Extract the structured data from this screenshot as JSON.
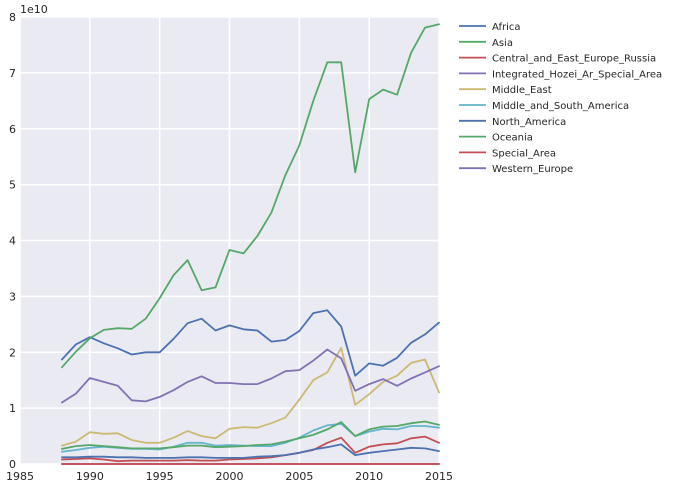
{
  "chart_data": {
    "type": "line",
    "title": "",
    "xlabel": "",
    "ylabel": "",
    "offset_label": "1e10",
    "xlim": [
      1985,
      2015
    ],
    "ylim": [
      0,
      8
    ],
    "xticks": [
      1985,
      1990,
      1995,
      2000,
      2005,
      2010,
      2015
    ],
    "yticks": [
      0,
      1,
      2,
      3,
      4,
      5,
      6,
      7,
      8
    ],
    "grid": true,
    "legend_position": "outside-top-right",
    "x": [
      1988,
      1989,
      1990,
      1991,
      1992,
      1993,
      1994,
      1995,
      1996,
      1997,
      1998,
      1999,
      2000,
      2001,
      2002,
      2003,
      2004,
      2005,
      2006,
      2007,
      2008,
      2009,
      2010,
      2011,
      2012,
      2013,
      2014,
      2015
    ],
    "series": [
      {
        "name": "Africa",
        "color": "#4c72b0",
        "values": [
          1.87,
          2.14,
          2.27,
          2.16,
          2.07,
          1.96,
          2.0,
          2.0,
          2.24,
          2.52,
          2.6,
          2.39,
          2.48,
          2.41,
          2.39,
          2.19,
          2.22,
          2.38,
          2.7,
          2.75,
          2.46,
          1.58,
          1.8,
          1.76,
          1.9,
          2.17,
          2.32,
          2.53
        ]
      },
      {
        "name": "Asia",
        "color": "#55a868",
        "values": [
          1.73,
          2.01,
          2.25,
          2.4,
          2.43,
          2.42,
          2.6,
          2.97,
          3.38,
          3.65,
          3.11,
          3.16,
          3.83,
          3.77,
          4.08,
          4.5,
          5.17,
          5.7,
          6.5,
          7.19,
          7.19,
          5.22,
          6.53,
          6.7,
          6.61,
          7.36,
          7.81,
          7.87
        ]
      },
      {
        "name": "Central_and_East_Europe_Russia",
        "color": "#c44e52",
        "values": [
          0.08,
          0.09,
          0.1,
          0.08,
          0.05,
          0.06,
          0.06,
          0.06,
          0.06,
          0.07,
          0.06,
          0.06,
          0.08,
          0.09,
          0.1,
          0.12,
          0.16,
          0.2,
          0.25,
          0.38,
          0.47,
          0.2,
          0.31,
          0.35,
          0.37,
          0.46,
          0.49,
          0.38
        ]
      },
      {
        "name": "Integrated_Hozei_Ar_Special_Area",
        "color": "#8172b2",
        "values": [
          0.0,
          0.0,
          0.0,
          0.0,
          0.0,
          0.0,
          0.0,
          0.0,
          0.0,
          0.0,
          0.0,
          0.0,
          0.0,
          0.0,
          0.0,
          0.0,
          0.0,
          0.0,
          0.0,
          0.0,
          0.0,
          0.0,
          0.0,
          0.0,
          0.0,
          0.0,
          0.0,
          0.0
        ]
      },
      {
        "name": "Middle_East",
        "color": "#ccb974",
        "values": [
          0.33,
          0.4,
          0.57,
          0.54,
          0.55,
          0.43,
          0.38,
          0.38,
          0.47,
          0.59,
          0.5,
          0.46,
          0.63,
          0.66,
          0.65,
          0.73,
          0.83,
          1.15,
          1.5,
          1.64,
          2.08,
          1.06,
          1.25,
          1.47,
          1.58,
          1.81,
          1.87,
          1.28
        ]
      },
      {
        "name": "Middle_and_South_America",
        "color": "#64b5cd",
        "values": [
          0.22,
          0.25,
          0.29,
          0.31,
          0.29,
          0.27,
          0.27,
          0.26,
          0.31,
          0.38,
          0.38,
          0.33,
          0.34,
          0.33,
          0.32,
          0.32,
          0.38,
          0.47,
          0.6,
          0.69,
          0.72,
          0.5,
          0.58,
          0.63,
          0.62,
          0.68,
          0.68,
          0.65
        ]
      },
      {
        "name": "North_America",
        "color": "#4c72b0",
        "values": [
          0.12,
          0.12,
          0.13,
          0.13,
          0.12,
          0.12,
          0.11,
          0.11,
          0.11,
          0.12,
          0.12,
          0.11,
          0.11,
          0.11,
          0.13,
          0.14,
          0.16,
          0.2,
          0.26,
          0.3,
          0.35,
          0.16,
          0.2,
          0.23,
          0.26,
          0.29,
          0.28,
          0.23
        ]
      },
      {
        "name": "Oceania",
        "color": "#55a868",
        "values": [
          0.27,
          0.32,
          0.34,
          0.32,
          0.3,
          0.28,
          0.28,
          0.28,
          0.3,
          0.33,
          0.33,
          0.3,
          0.31,
          0.32,
          0.34,
          0.35,
          0.4,
          0.46,
          0.52,
          0.62,
          0.75,
          0.5,
          0.62,
          0.67,
          0.68,
          0.73,
          0.76,
          0.7
        ]
      },
      {
        "name": "Special_Area",
        "color": "#c44e52",
        "values": [
          0.0,
          0.0,
          0.0,
          0.0,
          0.0,
          0.0,
          0.0,
          0.0,
          0.0,
          0.0,
          0.0,
          0.0,
          0.0,
          0.0,
          0.0,
          0.0,
          0.0,
          0.0,
          0.0,
          0.0,
          0.0,
          0.0,
          0.0,
          0.0,
          0.0,
          0.0,
          0.0,
          0.0
        ]
      },
      {
        "name": "Western_Europe",
        "color": "#8172b2",
        "values": [
          1.1,
          1.26,
          1.54,
          1.47,
          1.4,
          1.14,
          1.12,
          1.2,
          1.32,
          1.47,
          1.57,
          1.45,
          1.45,
          1.43,
          1.43,
          1.53,
          1.66,
          1.68,
          1.85,
          2.05,
          1.89,
          1.31,
          1.43,
          1.52,
          1.4,
          1.53,
          1.64,
          1.75
        ]
      }
    ]
  }
}
